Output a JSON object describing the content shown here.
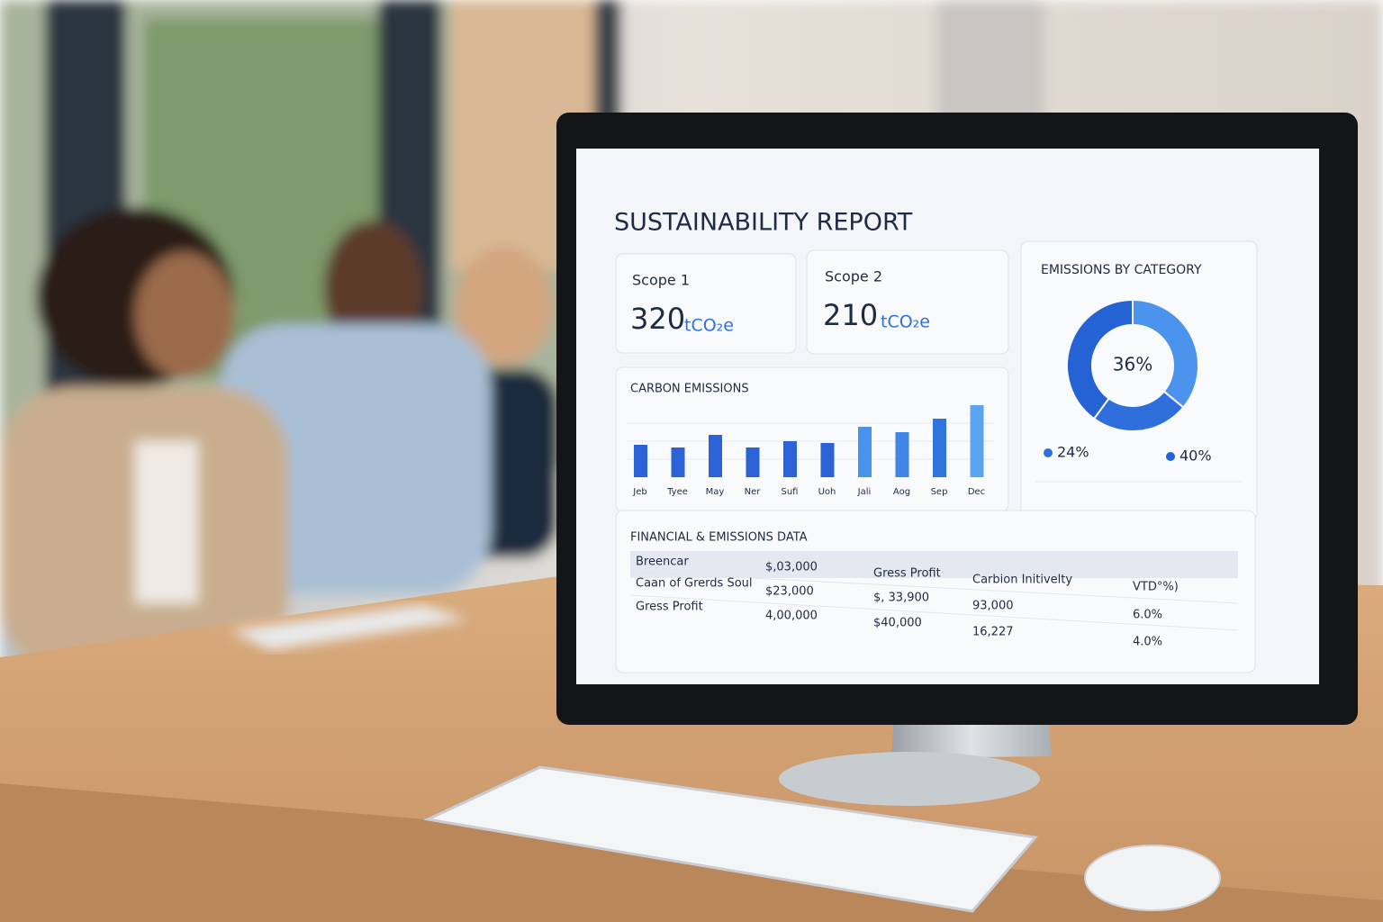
{
  "header": {
    "title": "SUSTAINABILITY REPORT"
  },
  "kpis": [
    {
      "label": "Scope 1",
      "value": "320",
      "unit": "tCO₂e"
    },
    {
      "label": "Scope 2",
      "value": "210",
      "unit": "tCO₂e"
    }
  ],
  "chart_data": [
    {
      "type": "bar",
      "title": "CARBON EMISSIONS",
      "categories": [
        "Jeb",
        "Tyee",
        "May",
        "Ner",
        "Sufi",
        "Uoh",
        "Jali",
        "Aog",
        "Sep",
        "Dec"
      ],
      "values": [
        36,
        33,
        47,
        33,
        40,
        38,
        56,
        50,
        65,
        80
      ],
      "ylim": [
        0,
        100
      ],
      "colors": [
        "#2b63d6",
        "#2b63d6",
        "#2b63d6",
        "#2b63d6",
        "#2b63d6",
        "#2b63d6",
        "#4a93ec",
        "#3f86e6",
        "#2f74df",
        "#5aa4f2"
      ]
    },
    {
      "type": "pie",
      "title": "EMISSIONS BY  CATEGORY",
      "values": [
        36,
        24,
        40
      ],
      "value_labels": [
        "36%",
        "24%",
        "40%"
      ],
      "colors": [
        "#4b93ec",
        "#2f6fdc",
        "#2563d4"
      ]
    }
  ],
  "table": {
    "title": "FINANCIAL & EMISSIONS DATA",
    "rows": [
      [
        "Breencar",
        "$,03,000",
        "Gress Profit",
        "Carbion Initivelty",
        "VTD°%)"
      ],
      [
        "Caan of Grerds Soul",
        "$23,000",
        "$, 33,900",
        "93,000",
        "6.0%"
      ],
      [
        "Gress Profit",
        "4,00,000",
        "$40,000",
        "16,227",
        "4.0%"
      ]
    ]
  }
}
